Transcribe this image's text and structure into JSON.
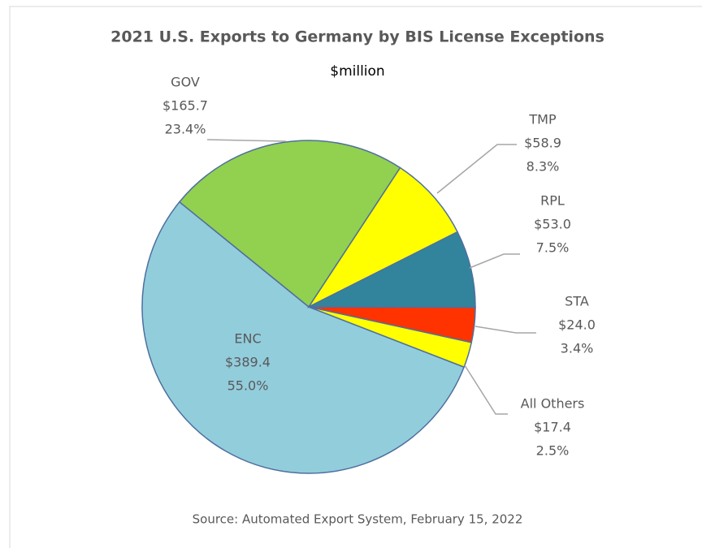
{
  "chart_data": {
    "type": "pie",
    "title": "2021 U.S. Exports to Germany by BIS License Exceptions",
    "subtitle": "$million",
    "source": "Source: Automated Export System, February 15, 2022",
    "categories": [
      "ENC",
      "GOV",
      "TMP",
      "RPL",
      "STA",
      "All Others"
    ],
    "values": [
      389.4,
      165.7,
      58.9,
      53.0,
      24.0,
      17.4
    ],
    "value_labels": [
      "$389.4",
      "$165.7",
      "$58.9",
      "$53.0",
      "$24.0",
      "$17.4"
    ],
    "percents": [
      55.0,
      23.4,
      8.3,
      7.5,
      3.4,
      2.5
    ],
    "percent_labels": [
      "55.0%",
      "23.4%",
      "8.3%",
      "7.5%",
      "3.4%",
      "2.5%"
    ],
    "colors": [
      "#92cddc",
      "#92d050",
      "#ffff00",
      "#31849b",
      "#ff3300",
      "#ffff00"
    ]
  }
}
